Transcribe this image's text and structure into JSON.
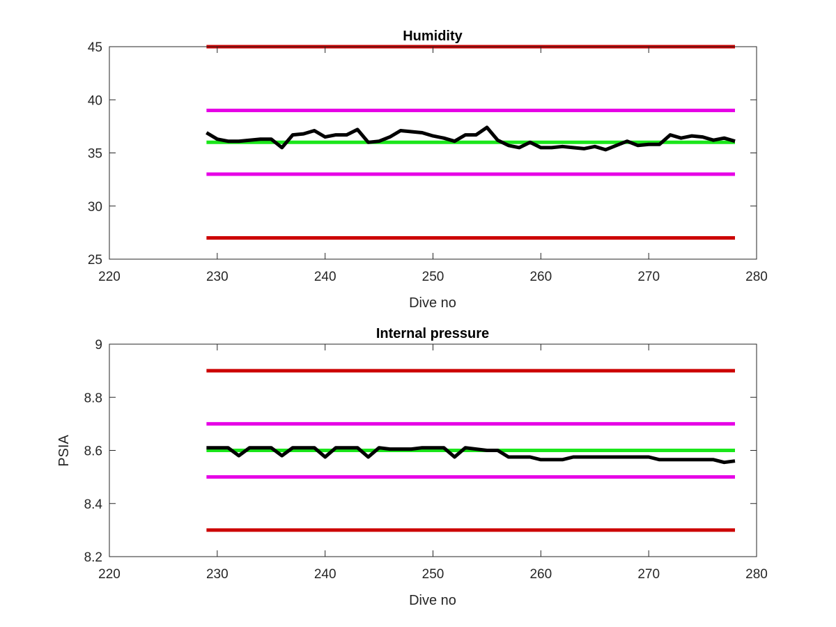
{
  "chart_data": [
    {
      "type": "line",
      "title": "Humidity",
      "xlabel": "Dive no",
      "ylabel": "",
      "xlim": [
        220,
        280
      ],
      "ylim": [
        25,
        45
      ],
      "xticks": [
        "220",
        "230",
        "240",
        "250",
        "260",
        "270",
        "280"
      ],
      "yticks": [
        "25",
        "30",
        "35",
        "40",
        "45"
      ],
      "grid": false,
      "series": [
        {
          "color": "#cc0000",
          "x": [
            229,
            278
          ],
          "y": [
            45,
            45
          ]
        },
        {
          "color": "#e600e6",
          "x": [
            229,
            278
          ],
          "y": [
            39,
            39
          ]
        },
        {
          "color": "#1ae61a",
          "x": [
            229,
            278
          ],
          "y": [
            36,
            36
          ]
        },
        {
          "color": "#e600e6",
          "x": [
            229,
            278
          ],
          "y": [
            33,
            33
          ]
        },
        {
          "color": "#cc0000",
          "x": [
            229,
            278
          ],
          "y": [
            27,
            27
          ]
        },
        {
          "color": "#000000",
          "x": [
            229,
            230,
            231,
            232,
            233,
            234,
            235,
            236,
            237,
            238,
            239,
            240,
            241,
            242,
            243,
            244,
            245,
            246,
            247,
            248,
            249,
            250,
            251,
            252,
            253,
            254,
            255,
            256,
            257,
            258,
            259,
            260,
            261,
            262,
            263,
            264,
            265,
            266,
            267,
            268,
            269,
            270,
            271,
            272,
            273,
            274,
            275,
            276,
            277,
            278
          ],
          "y": [
            36.9,
            36.3,
            36.1,
            36.1,
            36.2,
            36.3,
            36.3,
            35.5,
            36.7,
            36.8,
            37.1,
            36.5,
            36.7,
            36.7,
            37.2,
            36.0,
            36.1,
            36.5,
            37.1,
            37.0,
            36.9,
            36.6,
            36.4,
            36.1,
            36.7,
            36.7,
            37.4,
            36.2,
            35.7,
            35.5,
            36.0,
            35.5,
            35.5,
            35.6,
            35.5,
            35.4,
            35.6,
            35.3,
            35.7,
            36.1,
            35.7,
            35.8,
            35.8,
            36.7,
            36.4,
            36.6,
            36.5,
            36.2,
            36.4,
            36.1
          ]
        }
      ]
    },
    {
      "type": "line",
      "title": "Internal pressure",
      "xlabel": "Dive no",
      "ylabel": "PSIA",
      "xlim": [
        220,
        280
      ],
      "ylim": [
        8.2,
        9.0
      ],
      "xticks": [
        "220",
        "230",
        "240",
        "250",
        "260",
        "270",
        "280"
      ],
      "yticks": [
        "8.2",
        "8.4",
        "8.6",
        "8.8",
        "9"
      ],
      "grid": false,
      "series": [
        {
          "color": "#cc0000",
          "x": [
            229,
            278
          ],
          "y": [
            8.9,
            8.9
          ]
        },
        {
          "color": "#e600e6",
          "x": [
            229,
            278
          ],
          "y": [
            8.7,
            8.7
          ]
        },
        {
          "color": "#1ae61a",
          "x": [
            229,
            278
          ],
          "y": [
            8.6,
            8.6
          ]
        },
        {
          "color": "#e600e6",
          "x": [
            229,
            278
          ],
          "y": [
            8.5,
            8.5
          ]
        },
        {
          "color": "#cc0000",
          "x": [
            229,
            278
          ],
          "y": [
            8.3,
            8.3
          ]
        },
        {
          "color": "#000000",
          "x": [
            229,
            230,
            231,
            232,
            233,
            234,
            235,
            236,
            237,
            238,
            239,
            240,
            241,
            242,
            243,
            244,
            245,
            246,
            247,
            248,
            249,
            250,
            251,
            252,
            253,
            254,
            255,
            256,
            257,
            258,
            259,
            260,
            261,
            262,
            263,
            264,
            265,
            266,
            267,
            268,
            269,
            270,
            271,
            272,
            273,
            274,
            275,
            276,
            277,
            278
          ],
          "y": [
            8.61,
            8.61,
            8.61,
            8.58,
            8.61,
            8.61,
            8.61,
            8.58,
            8.61,
            8.61,
            8.61,
            8.575,
            8.61,
            8.61,
            8.61,
            8.575,
            8.61,
            8.605,
            8.605,
            8.605,
            8.61,
            8.61,
            8.61,
            8.575,
            8.61,
            8.605,
            8.6,
            8.6,
            8.575,
            8.575,
            8.575,
            8.565,
            8.565,
            8.565,
            8.575,
            8.575,
            8.575,
            8.575,
            8.575,
            8.575,
            8.575,
            8.575,
            8.565,
            8.565,
            8.565,
            8.565,
            8.565,
            8.565,
            8.555,
            8.56
          ]
        }
      ]
    }
  ]
}
